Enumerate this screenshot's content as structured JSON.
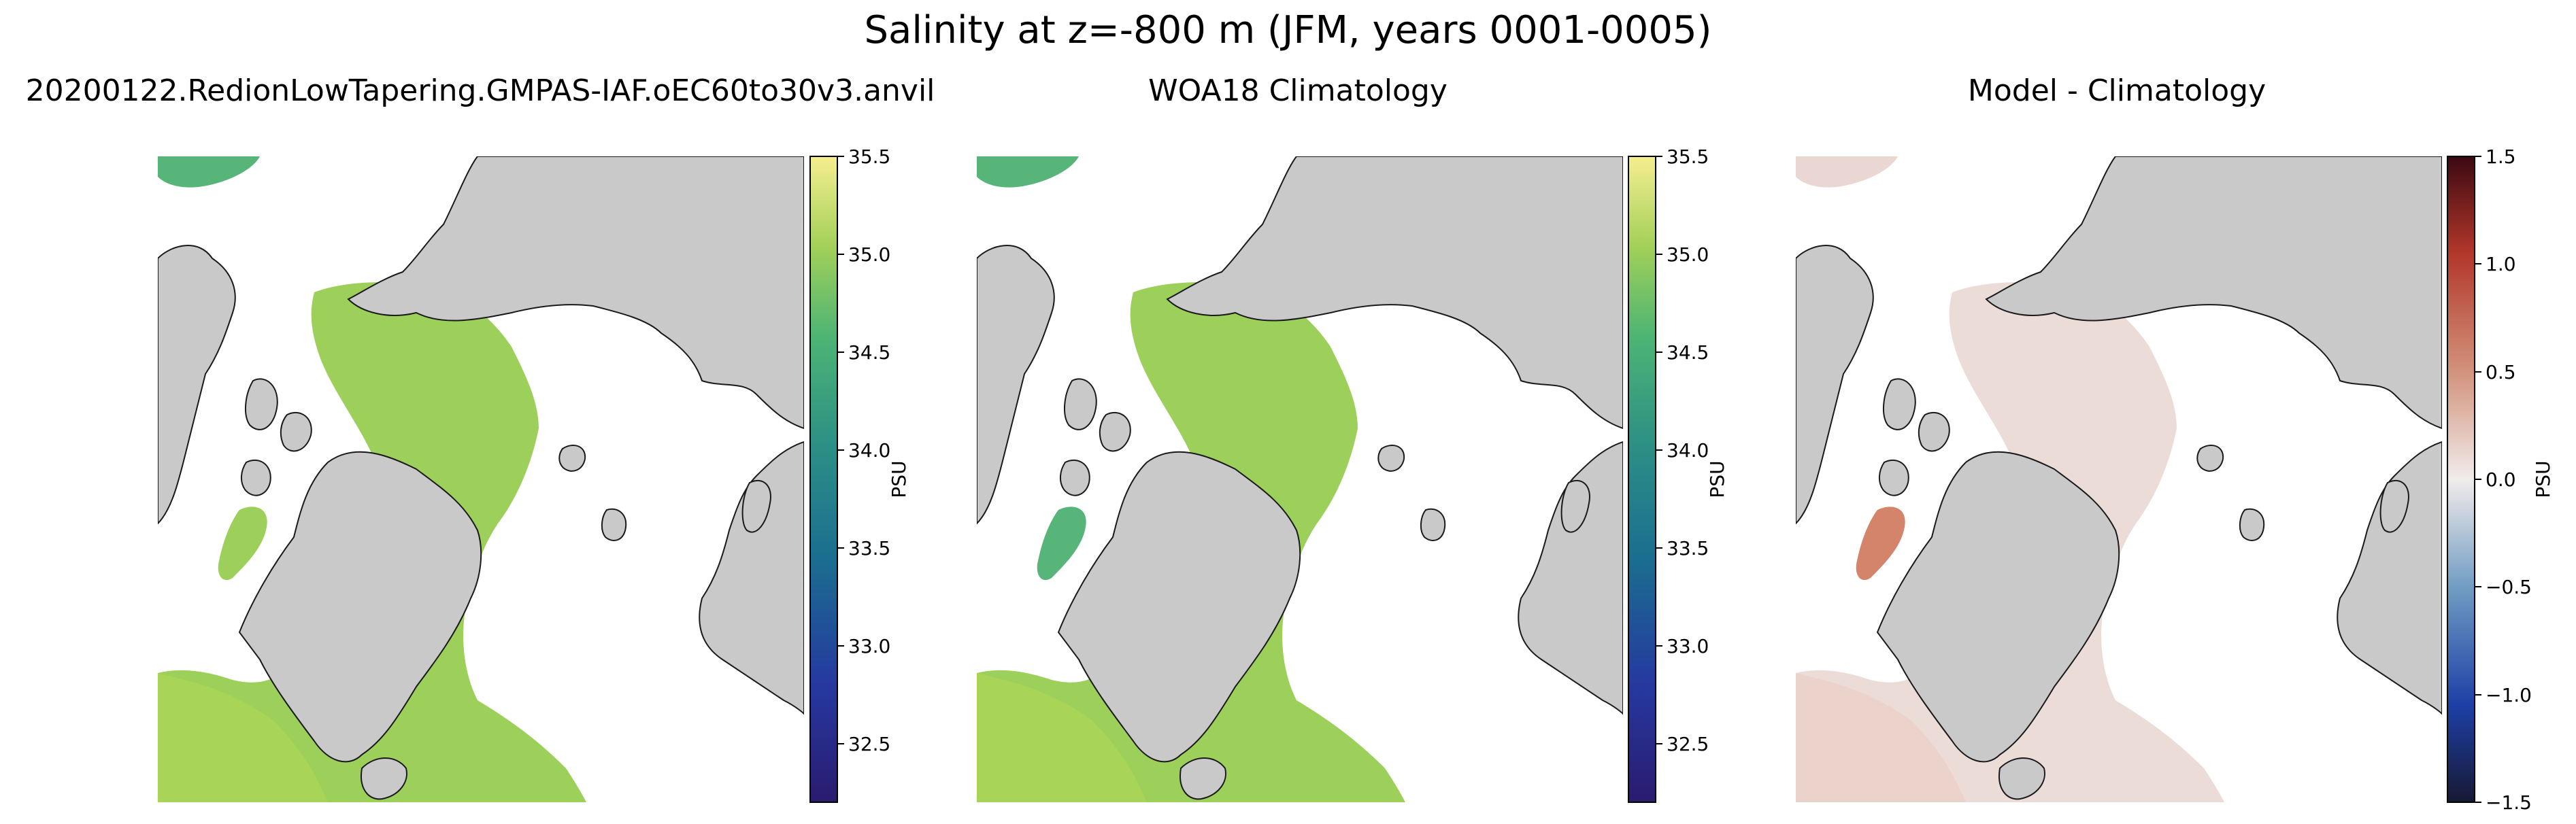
{
  "suptitle": "Salinity at z=-800 m (JFM, years 0001-0005)",
  "chart_data": [
    {
      "type": "heatmap",
      "title": "20200122.RedionLowTapering.GMPAS-IAF.oEC60to30v3.anvil",
      "field": "salinity",
      "colormap": "haline",
      "colorbar": {
        "label": "PSU",
        "range": [
          32.2,
          35.5
        ],
        "ticks": [
          32.5,
          33.0,
          33.5,
          34.0,
          34.5,
          35.0,
          35.5
        ],
        "tick_labels": [
          "32.5",
          "33.0",
          "33.5",
          "34.0",
          "34.5",
          "35.0",
          "35.5"
        ]
      }
    },
    {
      "type": "heatmap",
      "title": "WOA18 Climatology",
      "field": "salinity",
      "colormap": "haline",
      "colorbar": {
        "label": "PSU",
        "range": [
          32.2,
          35.5
        ],
        "ticks": [
          32.5,
          33.0,
          33.5,
          34.0,
          34.5,
          35.0,
          35.5
        ],
        "tick_labels": [
          "32.5",
          "33.0",
          "33.5",
          "34.0",
          "34.5",
          "35.0",
          "35.5"
        ]
      }
    },
    {
      "type": "heatmap",
      "title": "Model - Climatology",
      "field": "salinity difference",
      "colormap": "balance",
      "colorbar": {
        "label": "PSU",
        "range": [
          -1.5,
          1.5
        ],
        "ticks": [
          -1.5,
          -1.0,
          -0.5,
          0.0,
          0.5,
          1.0,
          1.5
        ],
        "tick_labels": [
          "−1.5",
          "−1.0",
          "−0.5",
          "0.0",
          "0.5",
          "1.0",
          "1.5"
        ]
      }
    }
  ],
  "colors": {
    "land": "#c9c9c9",
    "land_edge": "#1a1a1a",
    "no_data": "#ffffff",
    "model_fill": "#9cd05a",
    "atlantic_fill": "#a8d457",
    "labrador_high": "#58b57a",
    "diff_near_zero": "#ecdcd8",
    "diff_positive": "#d4846a"
  }
}
